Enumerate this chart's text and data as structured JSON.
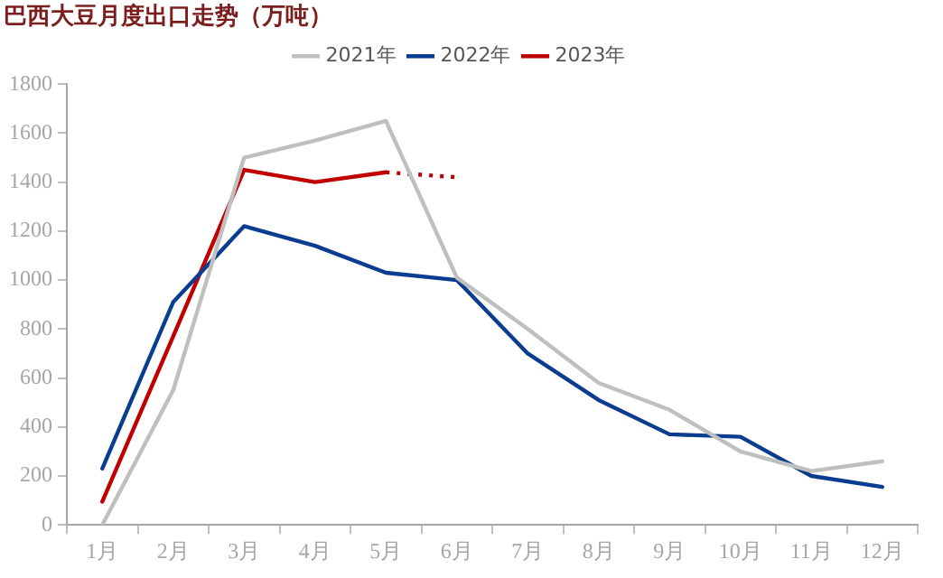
{
  "chart_data": {
    "type": "line",
    "title": "巴西大豆月度出口走势（万吨）",
    "categories": [
      "1月",
      "2月",
      "3月",
      "4月",
      "5月",
      "6月",
      "7月",
      "8月",
      "9月",
      "10月",
      "11月",
      "12月"
    ],
    "series": [
      {
        "name": "2021年",
        "color": "#bfbfbf",
        "values": [
          0,
          550,
          1500,
          1570,
          1650,
          1010,
          800,
          580,
          470,
          300,
          220,
          260
        ]
      },
      {
        "name": "2022年",
        "color": "#0a3d8f",
        "values": [
          230,
          910,
          1220,
          1140,
          1030,
          1000,
          700,
          510,
          370,
          360,
          200,
          155
        ]
      },
      {
        "name": "2023年",
        "color": "#c00000",
        "values": [
          95,
          770,
          1450,
          1400,
          1440,
          null,
          null,
          null,
          null,
          null,
          null,
          null
        ]
      },
      {
        "color": "#c00000",
        "line_style": "dotted",
        "values": [
          null,
          null,
          null,
          null,
          1440,
          1420,
          null,
          null,
          null,
          null,
          null,
          null
        ]
      }
    ],
    "ylim": [
      0,
      1800
    ],
    "yticks": [
      0,
      200,
      400,
      600,
      800,
      1000,
      1200,
      1400,
      1600,
      1800
    ],
    "grid": false,
    "legend": "top",
    "marker": "none",
    "line_style": "solid"
  }
}
